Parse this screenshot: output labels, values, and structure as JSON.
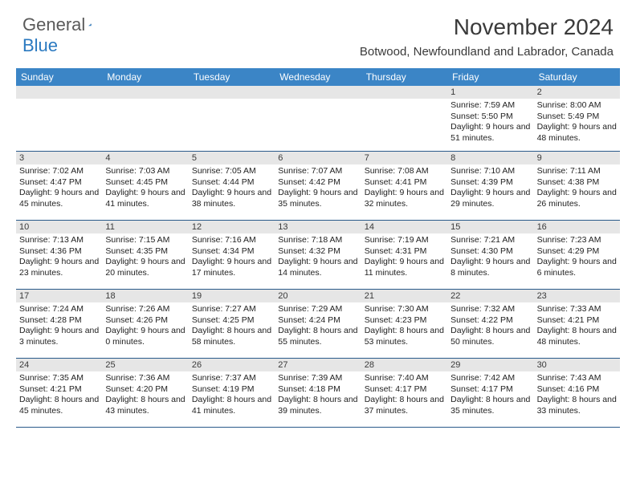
{
  "logo": {
    "general": "General",
    "blue": "Blue"
  },
  "title": "November 2024",
  "location": "Botwood, Newfoundland and Labrador, Canada",
  "colors": {
    "header_bg": "#3b85c6",
    "header_text": "#ffffff",
    "daynum_bg": "#e6e6e6",
    "border": "#2a5a8a",
    "logo_gray": "#5a5a5a",
    "logo_blue": "#2a79c0",
    "text": "#222222"
  },
  "day_names": [
    "Sunday",
    "Monday",
    "Tuesday",
    "Wednesday",
    "Thursday",
    "Friday",
    "Saturday"
  ],
  "weeks": [
    [
      {
        "n": "",
        "sr": "",
        "ss": "",
        "dl": ""
      },
      {
        "n": "",
        "sr": "",
        "ss": "",
        "dl": ""
      },
      {
        "n": "",
        "sr": "",
        "ss": "",
        "dl": ""
      },
      {
        "n": "",
        "sr": "",
        "ss": "",
        "dl": ""
      },
      {
        "n": "",
        "sr": "",
        "ss": "",
        "dl": ""
      },
      {
        "n": "1",
        "sr": "Sunrise: 7:59 AM",
        "ss": "Sunset: 5:50 PM",
        "dl": "Daylight: 9 hours and 51 minutes."
      },
      {
        "n": "2",
        "sr": "Sunrise: 8:00 AM",
        "ss": "Sunset: 5:49 PM",
        "dl": "Daylight: 9 hours and 48 minutes."
      }
    ],
    [
      {
        "n": "3",
        "sr": "Sunrise: 7:02 AM",
        "ss": "Sunset: 4:47 PM",
        "dl": "Daylight: 9 hours and 45 minutes."
      },
      {
        "n": "4",
        "sr": "Sunrise: 7:03 AM",
        "ss": "Sunset: 4:45 PM",
        "dl": "Daylight: 9 hours and 41 minutes."
      },
      {
        "n": "5",
        "sr": "Sunrise: 7:05 AM",
        "ss": "Sunset: 4:44 PM",
        "dl": "Daylight: 9 hours and 38 minutes."
      },
      {
        "n": "6",
        "sr": "Sunrise: 7:07 AM",
        "ss": "Sunset: 4:42 PM",
        "dl": "Daylight: 9 hours and 35 minutes."
      },
      {
        "n": "7",
        "sr": "Sunrise: 7:08 AM",
        "ss": "Sunset: 4:41 PM",
        "dl": "Daylight: 9 hours and 32 minutes."
      },
      {
        "n": "8",
        "sr": "Sunrise: 7:10 AM",
        "ss": "Sunset: 4:39 PM",
        "dl": "Daylight: 9 hours and 29 minutes."
      },
      {
        "n": "9",
        "sr": "Sunrise: 7:11 AM",
        "ss": "Sunset: 4:38 PM",
        "dl": "Daylight: 9 hours and 26 minutes."
      }
    ],
    [
      {
        "n": "10",
        "sr": "Sunrise: 7:13 AM",
        "ss": "Sunset: 4:36 PM",
        "dl": "Daylight: 9 hours and 23 minutes."
      },
      {
        "n": "11",
        "sr": "Sunrise: 7:15 AM",
        "ss": "Sunset: 4:35 PM",
        "dl": "Daylight: 9 hours and 20 minutes."
      },
      {
        "n": "12",
        "sr": "Sunrise: 7:16 AM",
        "ss": "Sunset: 4:34 PM",
        "dl": "Daylight: 9 hours and 17 minutes."
      },
      {
        "n": "13",
        "sr": "Sunrise: 7:18 AM",
        "ss": "Sunset: 4:32 PM",
        "dl": "Daylight: 9 hours and 14 minutes."
      },
      {
        "n": "14",
        "sr": "Sunrise: 7:19 AM",
        "ss": "Sunset: 4:31 PM",
        "dl": "Daylight: 9 hours and 11 minutes."
      },
      {
        "n": "15",
        "sr": "Sunrise: 7:21 AM",
        "ss": "Sunset: 4:30 PM",
        "dl": "Daylight: 9 hours and 8 minutes."
      },
      {
        "n": "16",
        "sr": "Sunrise: 7:23 AM",
        "ss": "Sunset: 4:29 PM",
        "dl": "Daylight: 9 hours and 6 minutes."
      }
    ],
    [
      {
        "n": "17",
        "sr": "Sunrise: 7:24 AM",
        "ss": "Sunset: 4:28 PM",
        "dl": "Daylight: 9 hours and 3 minutes."
      },
      {
        "n": "18",
        "sr": "Sunrise: 7:26 AM",
        "ss": "Sunset: 4:26 PM",
        "dl": "Daylight: 9 hours and 0 minutes."
      },
      {
        "n": "19",
        "sr": "Sunrise: 7:27 AM",
        "ss": "Sunset: 4:25 PM",
        "dl": "Daylight: 8 hours and 58 minutes."
      },
      {
        "n": "20",
        "sr": "Sunrise: 7:29 AM",
        "ss": "Sunset: 4:24 PM",
        "dl": "Daylight: 8 hours and 55 minutes."
      },
      {
        "n": "21",
        "sr": "Sunrise: 7:30 AM",
        "ss": "Sunset: 4:23 PM",
        "dl": "Daylight: 8 hours and 53 minutes."
      },
      {
        "n": "22",
        "sr": "Sunrise: 7:32 AM",
        "ss": "Sunset: 4:22 PM",
        "dl": "Daylight: 8 hours and 50 minutes."
      },
      {
        "n": "23",
        "sr": "Sunrise: 7:33 AM",
        "ss": "Sunset: 4:21 PM",
        "dl": "Daylight: 8 hours and 48 minutes."
      }
    ],
    [
      {
        "n": "24",
        "sr": "Sunrise: 7:35 AM",
        "ss": "Sunset: 4:21 PM",
        "dl": "Daylight: 8 hours and 45 minutes."
      },
      {
        "n": "25",
        "sr": "Sunrise: 7:36 AM",
        "ss": "Sunset: 4:20 PM",
        "dl": "Daylight: 8 hours and 43 minutes."
      },
      {
        "n": "26",
        "sr": "Sunrise: 7:37 AM",
        "ss": "Sunset: 4:19 PM",
        "dl": "Daylight: 8 hours and 41 minutes."
      },
      {
        "n": "27",
        "sr": "Sunrise: 7:39 AM",
        "ss": "Sunset: 4:18 PM",
        "dl": "Daylight: 8 hours and 39 minutes."
      },
      {
        "n": "28",
        "sr": "Sunrise: 7:40 AM",
        "ss": "Sunset: 4:17 PM",
        "dl": "Daylight: 8 hours and 37 minutes."
      },
      {
        "n": "29",
        "sr": "Sunrise: 7:42 AM",
        "ss": "Sunset: 4:17 PM",
        "dl": "Daylight: 8 hours and 35 minutes."
      },
      {
        "n": "30",
        "sr": "Sunrise: 7:43 AM",
        "ss": "Sunset: 4:16 PM",
        "dl": "Daylight: 8 hours and 33 minutes."
      }
    ]
  ]
}
